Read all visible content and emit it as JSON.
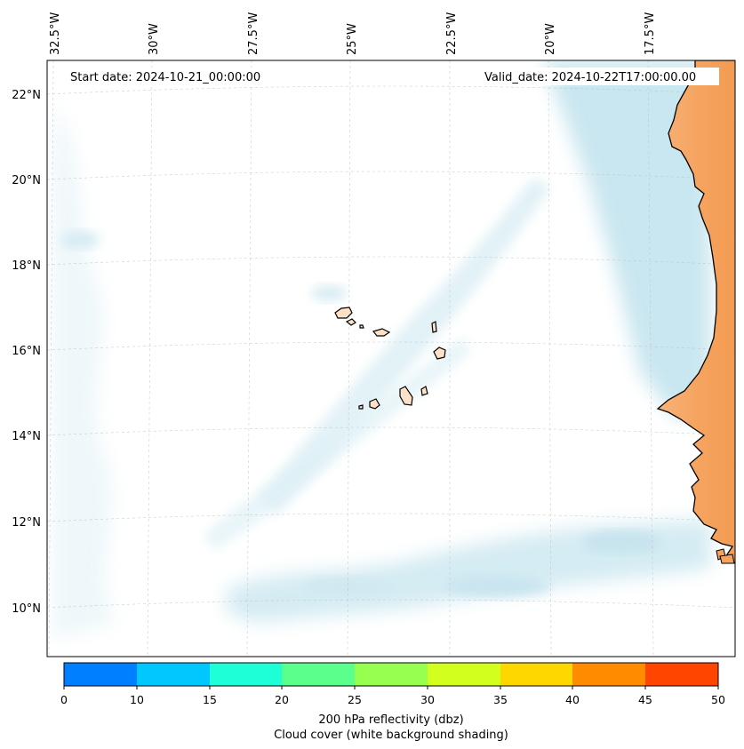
{
  "map": {
    "start_date_text": "Start date: 2024-10-21_00:00:00",
    "valid_date_text": "Valid_date: 2024-10-22T17:00:00.00",
    "lon_labels": [
      "32.5°W",
      "30°W",
      "27.5°W",
      "25°W",
      "22.5°W",
      "20°W",
      "17.5°W"
    ],
    "lat_labels": [
      "22°N",
      "20°N",
      "18°N",
      "16°N",
      "14°N",
      "12°N",
      "10°N"
    ],
    "land_color": "#f5a460",
    "island_color": "#fde0c8",
    "cloud_color": "#cfe9f1"
  },
  "colorbar": {
    "ticks": [
      "0",
      "10",
      "15",
      "20",
      "25",
      "30",
      "35",
      "40",
      "45",
      "50"
    ],
    "colors": [
      "#0080ff",
      "#00c8ff",
      "#1effd8",
      "#5aff8c",
      "#96ff50",
      "#d2ff1e",
      "#ffd700",
      "#ff8c00",
      "#ff4500"
    ],
    "label_line1": "200 hPa reflectivity (dbz)",
    "label_line2": "Cloud cover (white background shading)"
  }
}
